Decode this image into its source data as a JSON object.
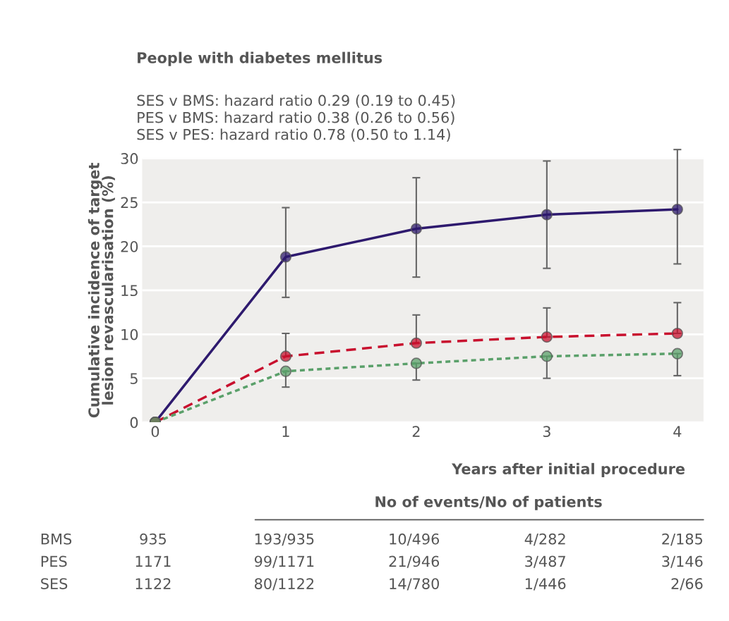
{
  "chart_data": {
    "type": "line",
    "title": "People with diabetes mellitus",
    "subtitle": "SES v BMS: hazard ratio 0.29 (0.19 to 0.45)\nPES v BMS: hazard ratio 0.38 (0.26 to 0.56)\nSES v PES: hazard ratio 0.78 (0.50 to 1.14)",
    "xlabel": "Years after initial procedure",
    "ylabel": "Cumulative incidence of target\nlesion revascularisation (%)",
    "x": [
      0,
      1,
      2,
      3,
      4
    ],
    "xlim": [
      -0.1,
      4.2
    ],
    "xticks": [
      0,
      1,
      2,
      3,
      4
    ],
    "ylim": [
      0,
      30
    ],
    "yticks": [
      0,
      5,
      10,
      15,
      20,
      25,
      30
    ],
    "grid": "y",
    "legend": false,
    "marker": "circle",
    "series": [
      {
        "color": "#2e1a6e",
        "line_style": "solid",
        "values": [
          0,
          18.8,
          22.0,
          23.6,
          24.2
        ],
        "errors": [
          null,
          [
            14.2,
            24.4
          ],
          [
            16.5,
            27.8
          ],
          [
            17.5,
            29.7
          ],
          [
            18.0,
            31.0
          ]
        ]
      },
      {
        "color": "#c8102e",
        "line_style": "dashed",
        "values": [
          0,
          7.5,
          9.0,
          9.7,
          10.1
        ],
        "errors": [
          null,
          [
            7.5,
            10.1
          ],
          [
            9.0,
            12.2
          ],
          [
            9.7,
            13.0
          ],
          [
            10.1,
            13.6
          ]
        ]
      },
      {
        "color": "#5aa06a",
        "line_style": "dotted",
        "values": [
          0,
          5.8,
          6.7,
          7.5,
          7.8
        ],
        "errors": [
          null,
          [
            4.0,
            5.8
          ],
          [
            4.8,
            6.7
          ],
          [
            5.0,
            7.5
          ],
          [
            5.3,
            7.8
          ]
        ]
      }
    ],
    "annotations": [
      "No of events/No of patients",
      "BMS",
      "935",
      "193/935",
      "10/496",
      "4/282",
      "2/185",
      "PES",
      "1171",
      "99/1171",
      "21/946",
      "3/487",
      "3/146",
      "SES",
      "1122",
      "80/1122",
      "14/780",
      "1/446",
      "2/66"
    ]
  }
}
